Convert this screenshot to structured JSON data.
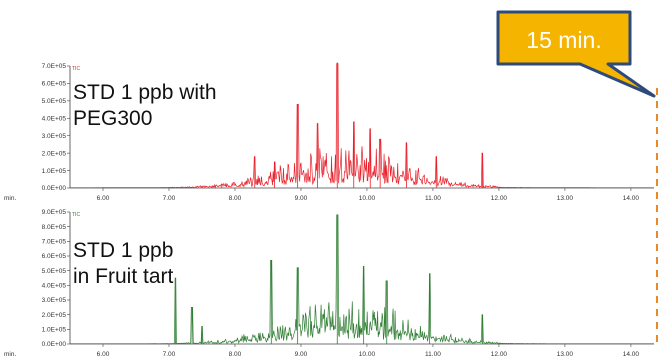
{
  "chart_data": [
    {
      "type": "line",
      "label": "STD 1 ppb with PEG300",
      "label_lines": [
        "STD 1 ppb with",
        "PEG300"
      ],
      "tag": "TIC",
      "x_unit": "min.",
      "xlim": [
        5.5,
        14.35
      ],
      "ylim": [
        0,
        700000
      ],
      "yticks": [
        "0.0E+00",
        "1.0E+05",
        "2.0E+05",
        "3.0E+05",
        "4.0E+05",
        "5.0E+05",
        "6.0E+05",
        "7.0E+05"
      ],
      "xticks": [
        "6.00",
        "7.00",
        "8.00",
        "9.00",
        "10.00",
        "11.00",
        "12.00",
        "13.00",
        "14.00"
      ],
      "color": "#e8202a",
      "peaks": [
        {
          "x": 7.8,
          "y": 20000
        },
        {
          "x": 8.3,
          "y": 180000
        },
        {
          "x": 8.6,
          "y": 150000
        },
        {
          "x": 8.95,
          "y": 480000
        },
        {
          "x": 9.25,
          "y": 370000
        },
        {
          "x": 9.55,
          "y": 720000
        },
        {
          "x": 9.8,
          "y": 380000
        },
        {
          "x": 10.05,
          "y": 340000
        },
        {
          "x": 10.2,
          "y": 280000
        },
        {
          "x": 10.6,
          "y": 260000
        },
        {
          "x": 11.05,
          "y": 180000
        },
        {
          "x": 11.75,
          "y": 200000
        }
      ]
    },
    {
      "type": "line",
      "label": "STD 1 ppb in Fruit tart",
      "label_lines": [
        "STD 1 ppb",
        "in Fruit tart"
      ],
      "tag": "TIC",
      "x_unit": "min.",
      "xlim": [
        5.5,
        14.35
      ],
      "ylim": [
        0,
        900000
      ],
      "yticks": [
        "0.0E+00",
        "1.0E+05",
        "2.0E+05",
        "3.0E+05",
        "4.0E+05",
        "5.0E+05",
        "6.0E+05",
        "7.0E+05",
        "8.0E+05",
        "9.0E+05"
      ],
      "xticks": [
        "6.00",
        "7.00",
        "8.00",
        "9.00",
        "10.00",
        "11.00",
        "12.00",
        "13.00",
        "14.00"
      ],
      "color": "#2e7d32",
      "peaks": [
        {
          "x": 7.1,
          "y": 450000
        },
        {
          "x": 7.35,
          "y": 250000
        },
        {
          "x": 7.5,
          "y": 120000
        },
        {
          "x": 8.55,
          "y": 570000
        },
        {
          "x": 8.95,
          "y": 520000
        },
        {
          "x": 9.55,
          "y": 880000
        },
        {
          "x": 9.95,
          "y": 530000
        },
        {
          "x": 10.3,
          "y": 430000
        },
        {
          "x": 10.95,
          "y": 480000
        },
        {
          "x": 11.75,
          "y": 200000
        }
      ]
    }
  ],
  "callout": {
    "text": "15 min.",
    "fill": "#f5b400",
    "border": "#2e4a7a"
  },
  "marker_color": "#e88a2a"
}
